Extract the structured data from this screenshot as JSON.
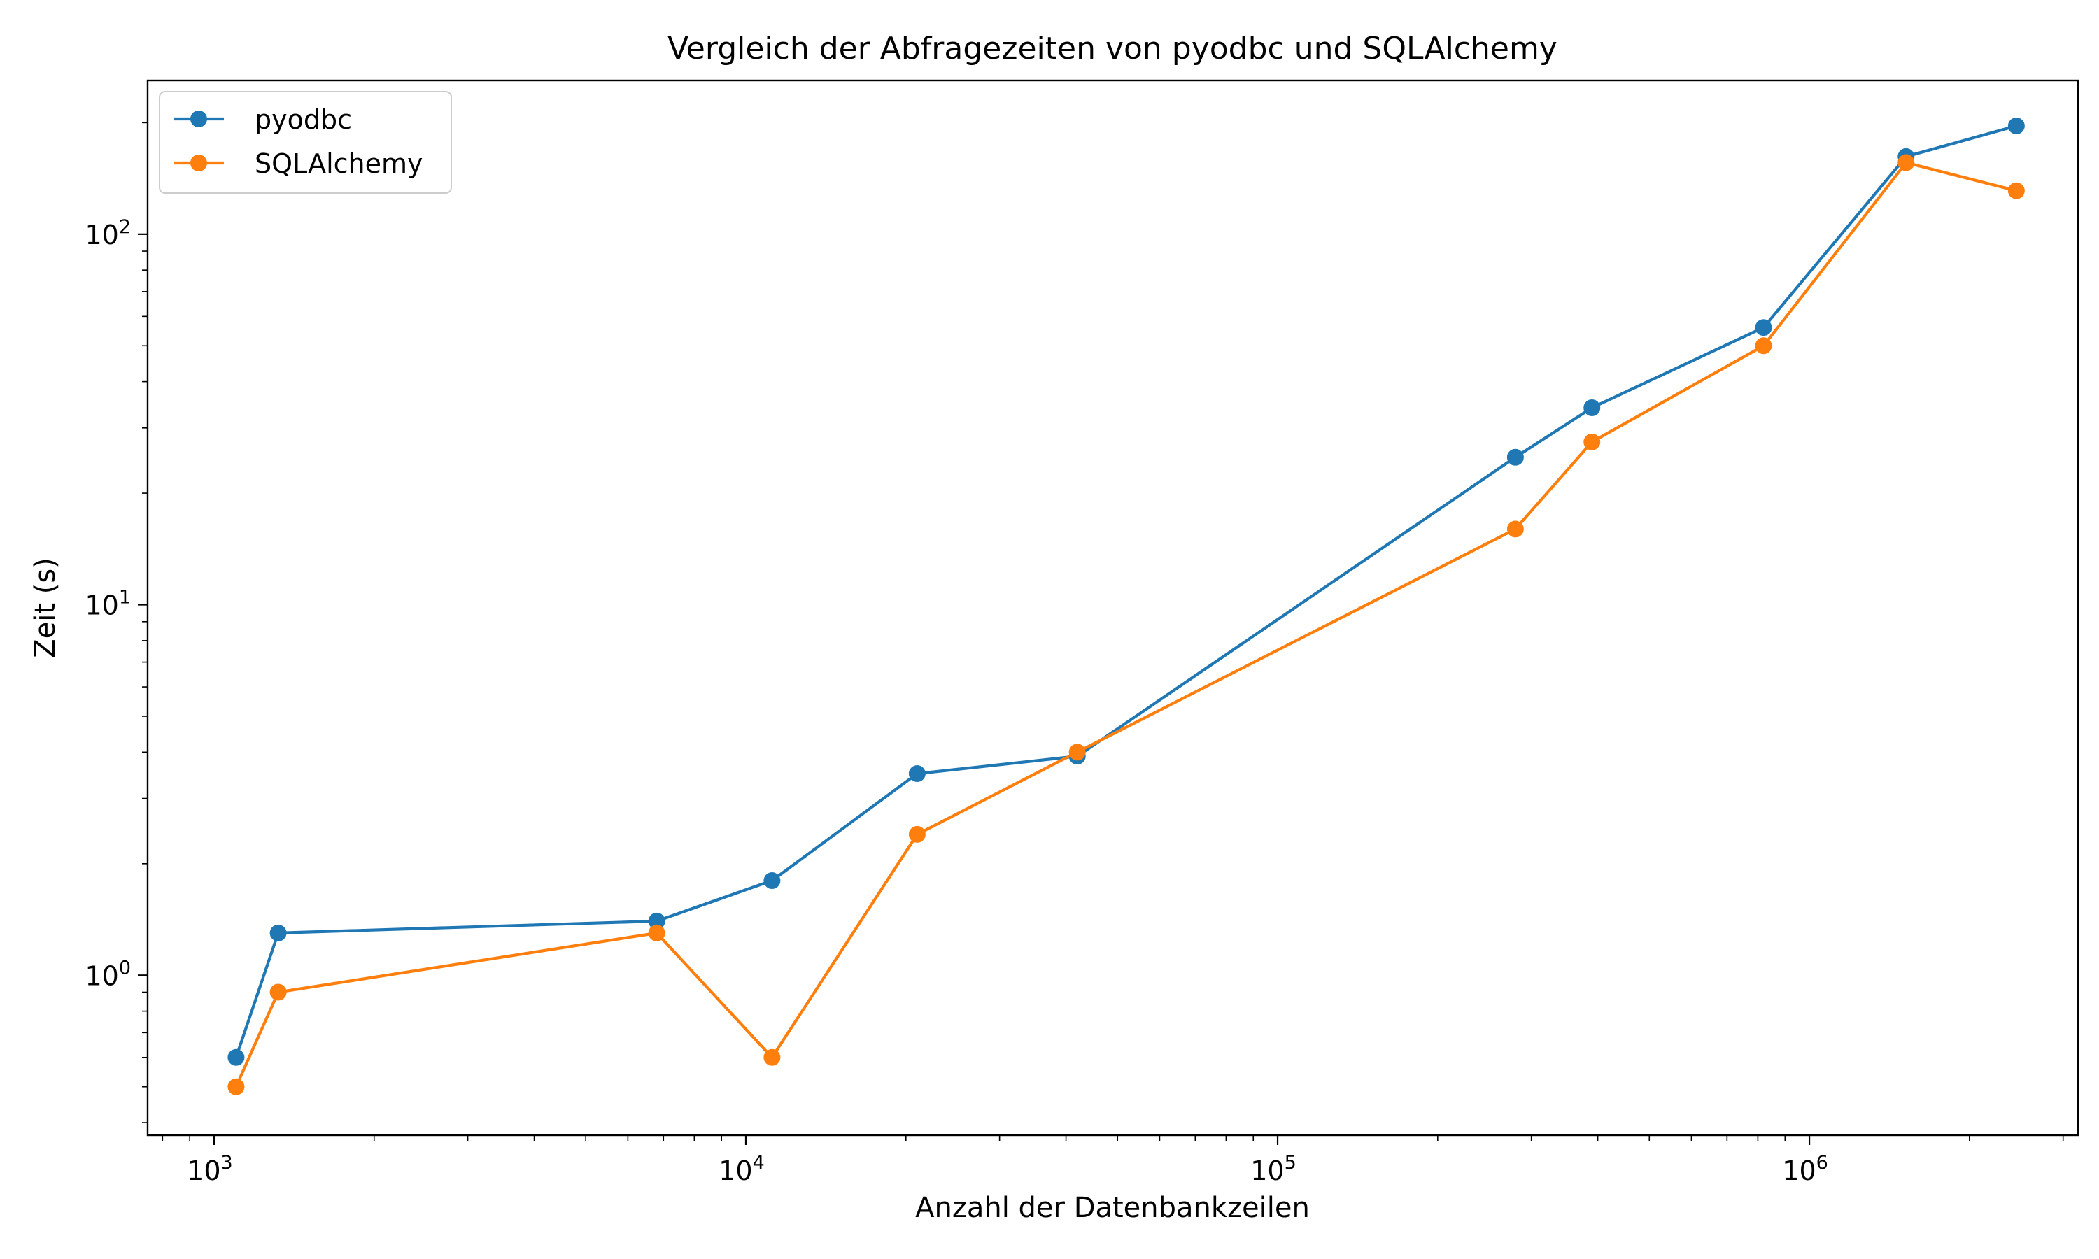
{
  "chart_data": {
    "type": "line",
    "title": "Vergleich der Abfragezeiten von pyodbc und SQLAlchemy",
    "xlabel": "Anzahl der Datenbankzeilen",
    "ylabel": "Zeit (s)",
    "xscale": "log",
    "yscale": "log",
    "xlim": [
      750,
      3200000
    ],
    "ylim": [
      0.37,
      260
    ],
    "x_ticks": [
      {
        "value": 1000,
        "base": "10",
        "exp": "3"
      },
      {
        "value": 10000,
        "base": "10",
        "exp": "4"
      },
      {
        "value": 100000,
        "base": "10",
        "exp": "5"
      },
      {
        "value": 1000000,
        "base": "10",
        "exp": "6"
      }
    ],
    "y_ticks": [
      {
        "value": 1,
        "base": "10",
        "exp": "0"
      },
      {
        "value": 10,
        "base": "10",
        "exp": "1"
      },
      {
        "value": 100,
        "base": "10",
        "exp": "2"
      }
    ],
    "grid": false,
    "legend_position": "top-left",
    "series": [
      {
        "name": "pyodbc",
        "color": "#1f77b4",
        "x": [
          1100,
          1320,
          6800,
          11200,
          21000,
          42000,
          280000,
          390000,
          820000,
          1520000,
          2450000
        ],
        "y": [
          0.6,
          1.3,
          1.4,
          1.8,
          3.5,
          3.9,
          25,
          34,
          56,
          162,
          196
        ]
      },
      {
        "name": "SQLAlchemy",
        "color": "#ff7f0e",
        "x": [
          1100,
          1320,
          6800,
          11200,
          21000,
          42000,
          280000,
          390000,
          820000,
          1520000,
          2450000
        ],
        "y": [
          0.5,
          0.9,
          1.3,
          0.6,
          2.4,
          4.0,
          16,
          27.5,
          50,
          156,
          131
        ]
      }
    ]
  }
}
